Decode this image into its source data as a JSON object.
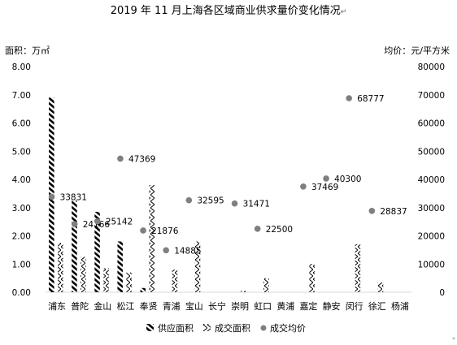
{
  "chart_data": {
    "type": "bar",
    "title": "2019 年 11 月上海各区域商业供求量价变化情况",
    "title_mark": "↵",
    "y_left_label": "面积：万㎡",
    "y_right_label": "均价：元/平方米",
    "y_left_ticks": [
      "0.00",
      "1.00",
      "2.00",
      "3.00",
      "4.00",
      "5.00",
      "6.00",
      "7.00",
      "8.00"
    ],
    "y_right_ticks": [
      "0",
      "10000",
      "20000",
      "30000",
      "40000",
      "50000",
      "60000",
      "70000",
      "80000"
    ],
    "ylim_left": [
      0,
      8
    ],
    "ylim_right": [
      0,
      80000
    ],
    "categories": [
      "浦东",
      "普陀",
      "金山",
      "松江",
      "奉贤",
      "青浦",
      "宝山",
      "长宁",
      "崇明",
      "虹口",
      "黄浦",
      "嘉定",
      "静安",
      "闵行",
      "徐汇",
      "杨浦"
    ],
    "series": [
      {
        "name": "供应面积",
        "axis": "left",
        "kind": "bar",
        "pattern": "dense-diagonal",
        "values": [
          6.9,
          3.25,
          2.85,
          1.8,
          0.15,
          0,
          0,
          0,
          0,
          0,
          0,
          0,
          0,
          0,
          0,
          0
        ]
      },
      {
        "name": "成交面积",
        "axis": "left",
        "kind": "bar",
        "pattern": "zigzag",
        "values": [
          1.75,
          1.25,
          0.85,
          0.7,
          3.8,
          0.8,
          1.8,
          0,
          0.05,
          0.5,
          0,
          1.0,
          0,
          1.7,
          0.35,
          0
        ]
      },
      {
        "name": "成交均价",
        "axis": "right",
        "kind": "scatter",
        "values": [
          33831,
          24166,
          25142,
          47369,
          21876,
          14885,
          32595,
          null,
          31471,
          22500,
          null,
          37469,
          40300,
          68777,
          28837,
          null
        ],
        "labels": [
          "33831",
          "24166",
          "25142",
          "47369",
          "21876",
          "14885",
          "32595",
          "",
          "31471",
          "22500",
          "",
          "37469",
          "40300",
          "68777",
          "28837",
          ""
        ],
        "color": "#7f7f7f"
      }
    ],
    "legend": [
      "供应面积",
      "成交面积",
      "成交均价"
    ],
    "legend_position": "bottom",
    "grid": false
  }
}
